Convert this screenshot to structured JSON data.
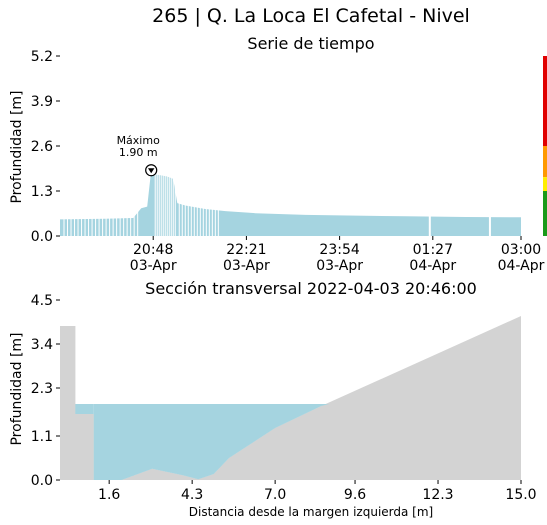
{
  "page_title": "265 | Q. La Loca El Cafetal - Nivel",
  "chart_data": [
    {
      "type": "area",
      "title": "Serie de tiempo",
      "ylabel": "Profundidad [m]",
      "xlabel": "",
      "ylim": [
        0,
        5.2
      ],
      "yticks": [
        "0.0",
        "1.3",
        "2.6",
        "3.9",
        "5.2"
      ],
      "ytick_values": [
        0,
        1.3,
        2.6,
        3.9,
        5.2
      ],
      "x_range_min": [
        1155,
        1615
      ],
      "xticks": [
        {
          "t": 1248,
          "line1": "20:48",
          "line2": "03-Apr"
        },
        {
          "t": 1341,
          "line1": "22:21",
          "line2": "03-Apr"
        },
        {
          "t": 1434,
          "line1": "23:54",
          "line2": "03-Apr"
        },
        {
          "t": 1527,
          "line1": "01:27",
          "line2": "04-Apr"
        },
        {
          "t": 1620,
          "line1": "03:00",
          "line2": "04-Apr"
        }
      ],
      "series": [
        {
          "color": "#a5d4e0",
          "points": [
            [
              1155,
              0.48
            ],
            [
              1200,
              0.5
            ],
            [
              1228,
              0.52
            ],
            [
              1236,
              0.8
            ],
            [
              1242,
              0.85
            ],
            [
              1246,
              1.9
            ],
            [
              1250,
              1.78
            ],
            [
              1256,
              1.75
            ],
            [
              1262,
              1.72
            ],
            [
              1268,
              1.65
            ],
            [
              1272,
              0.95
            ],
            [
              1280,
              0.88
            ],
            [
              1300,
              0.78
            ],
            [
              1320,
              0.72
            ],
            [
              1350,
              0.66
            ],
            [
              1400,
              0.61
            ],
            [
              1450,
              0.59
            ],
            [
              1500,
              0.57
            ],
            [
              1560,
              0.55
            ],
            [
              1615,
              0.54
            ]
          ]
        }
      ],
      "annotation": {
        "label_line1": "Máximo",
        "label_line2": "1.90 m",
        "t": 1246,
        "y": 1.9
      },
      "alert_scale": [
        {
          "color": "#e00000",
          "from": 2.6,
          "to": 5.2
        },
        {
          "color": "#ff9900",
          "from": 1.7,
          "to": 2.6
        },
        {
          "color": "#ffee00",
          "from": 1.3,
          "to": 1.7
        },
        {
          "color": "#1a9a1a",
          "from": 0.0,
          "to": 1.3
        }
      ]
    },
    {
      "type": "area",
      "title": "Sección transversal 2022-04-03 20:46:00",
      "xlabel": "Distancia desde la margen izquierda [m]",
      "ylabel": "Profundidad [m]",
      "xlim": [
        0,
        15.0
      ],
      "ylim": [
        0,
        4.5
      ],
      "xticks": [
        "1.6",
        "4.3",
        "7.0",
        "9.6",
        "12.3",
        "15.0"
      ],
      "xtick_values": [
        1.6,
        4.3,
        7.0,
        9.6,
        12.3,
        15.0
      ],
      "yticks": [
        "0.0",
        "1.1",
        "2.3",
        "3.4",
        "4.5"
      ],
      "ytick_values": [
        0,
        1.1,
        2.3,
        3.4,
        4.5
      ],
      "water_level": 1.9,
      "water_color": "#a5d4e0",
      "ground_color": "#d3d3d3",
      "profile": [
        [
          0,
          3.85
        ],
        [
          0.5,
          3.85
        ],
        [
          0.5,
          1.65
        ],
        [
          1.1,
          1.65
        ],
        [
          1.1,
          0
        ],
        [
          2.0,
          0
        ],
        [
          3.0,
          0.28
        ],
        [
          4.0,
          0.12
        ],
        [
          4.5,
          0.02
        ],
        [
          5.0,
          0.15
        ],
        [
          5.5,
          0.55
        ],
        [
          7.0,
          1.3
        ],
        [
          8.5,
          1.85
        ],
        [
          15.0,
          4.1
        ]
      ]
    }
  ]
}
